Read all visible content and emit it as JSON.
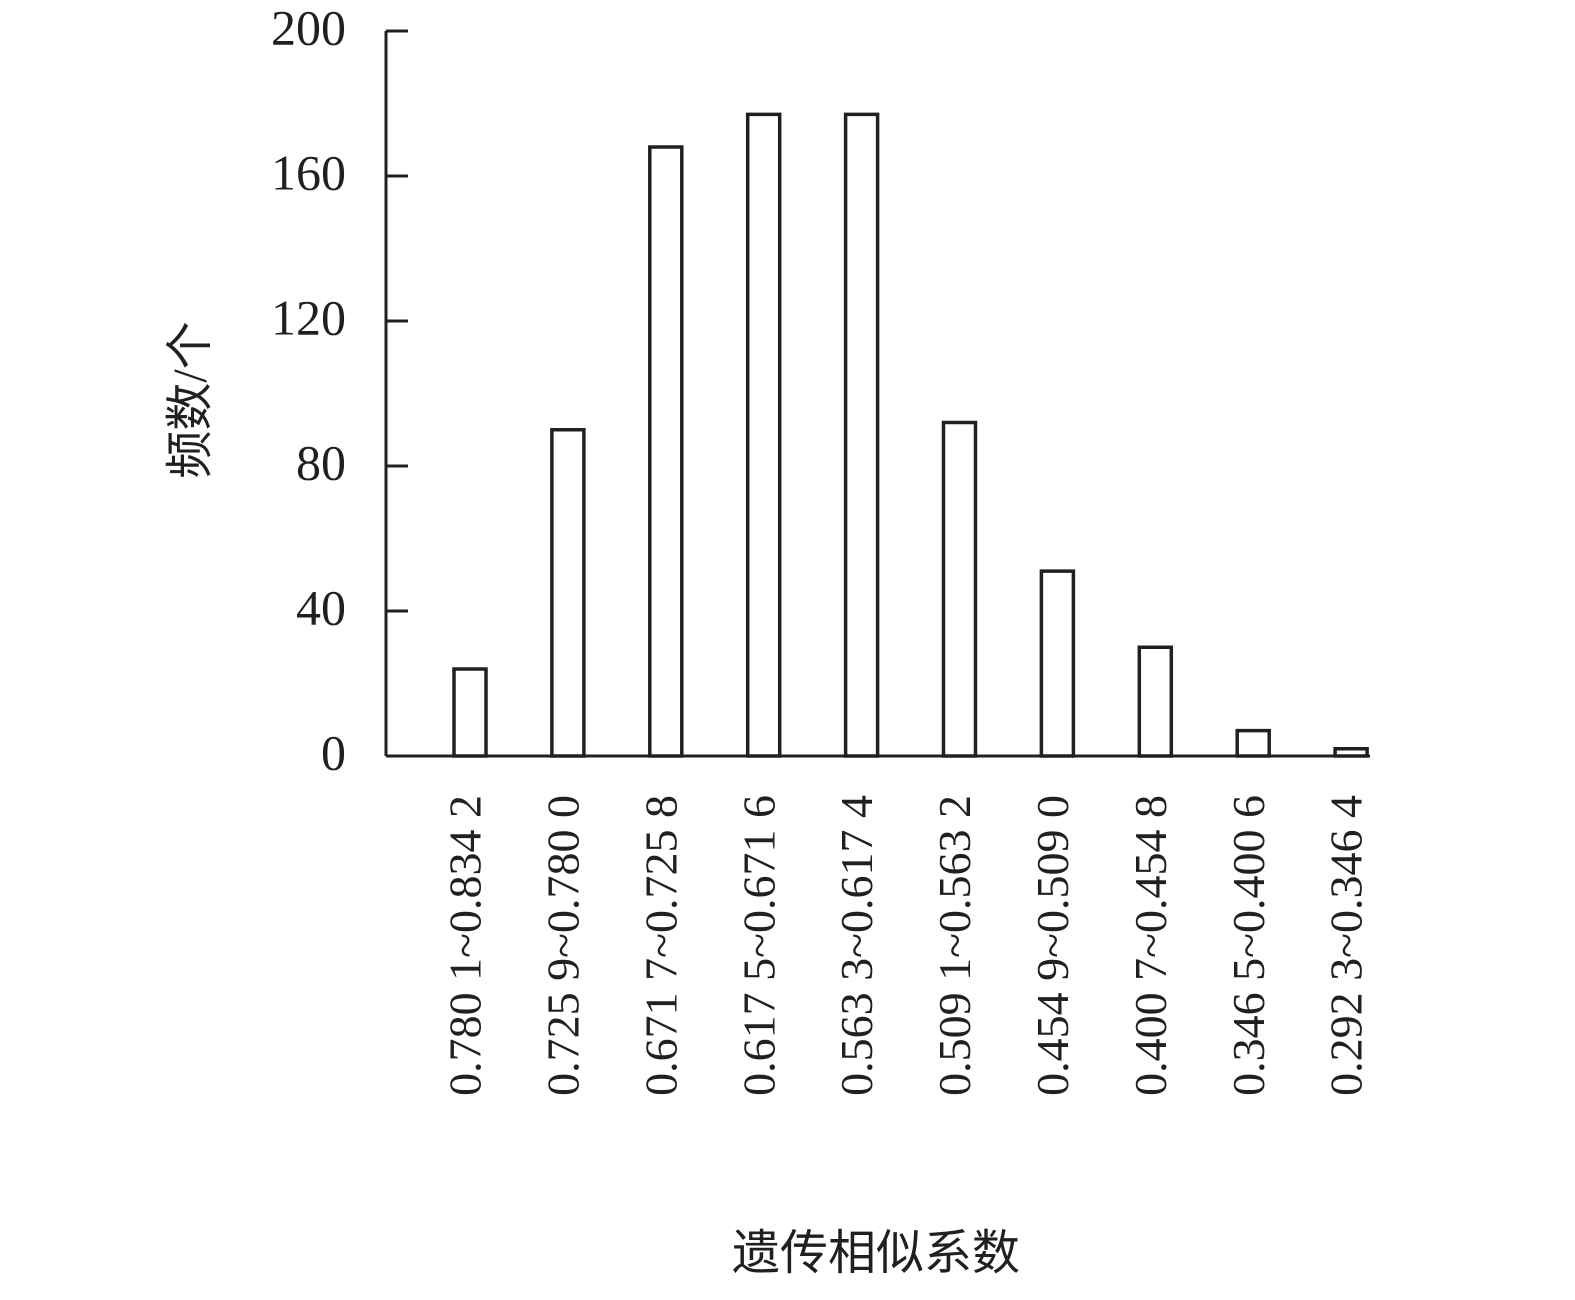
{
  "chart_data": {
    "type": "bar",
    "x_label": "遗传相似系数",
    "y_label": "频数/个",
    "categories": [
      "0.780 1~0.834 2",
      "0.725 9~0.780 0",
      "0.671 7~0.725 8",
      "0.617 5~0.671 6",
      "0.563 3~0.617 4",
      "0.509 1~0.563 2",
      "0.454 9~0.509 0",
      "0.400 7~0.454 8",
      "0.346 5~0.400 6",
      "0.292 3~0.346 4"
    ],
    "values": [
      24,
      90,
      168,
      177,
      177,
      92,
      51,
      30,
      7,
      2
    ],
    "color": "#ffffff",
    "ylim": [
      0,
      200
    ],
    "yticks": [
      0,
      40,
      80,
      120,
      160,
      200
    ],
    "grid": false
  }
}
